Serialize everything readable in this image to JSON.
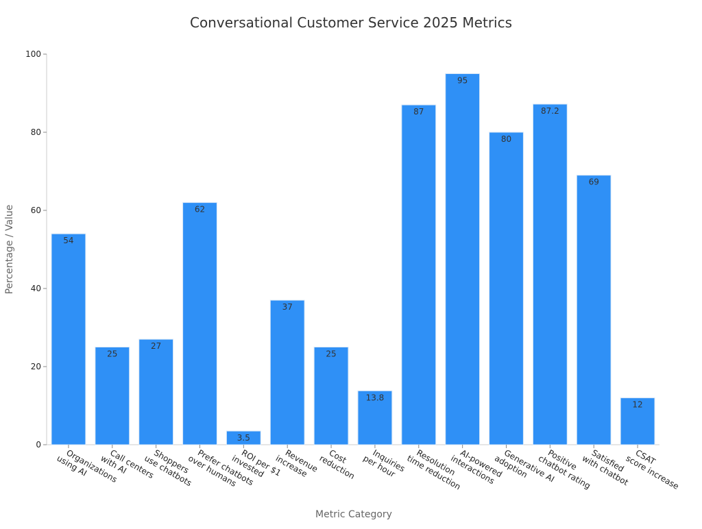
{
  "chart_data": {
    "type": "bar",
    "title": "Conversational Customer Service 2025 Metrics",
    "x_label": "Metric Category",
    "y_label": "Percentage / Value",
    "categories": [
      "Organizations\nusing AI",
      "Call centers\nwith AI",
      "Shoppers\nuse chatbots",
      "Prefer chatbots\nover humans",
      "ROI per $1\ninvested",
      "Revenue\nincrease",
      "Cost\nreduction",
      "Inquiries\nper hour",
      "Resolution\ntime reduction",
      "AI-powered\ninteractions",
      "Generative AI\nadoption",
      "Positive\nchatbot rating",
      "Satisfied\nwith chatbot",
      "CSAT\nscore increase"
    ],
    "values": [
      54,
      25,
      27,
      62,
      3.5,
      37,
      25,
      13.8,
      87,
      95,
      80,
      87.2,
      69,
      12
    ],
    "color": "#2f90f6",
    "ylim": [
      0,
      100
    ],
    "yticks": [
      0,
      20,
      40,
      60,
      80,
      100
    ],
    "grid": false
  }
}
